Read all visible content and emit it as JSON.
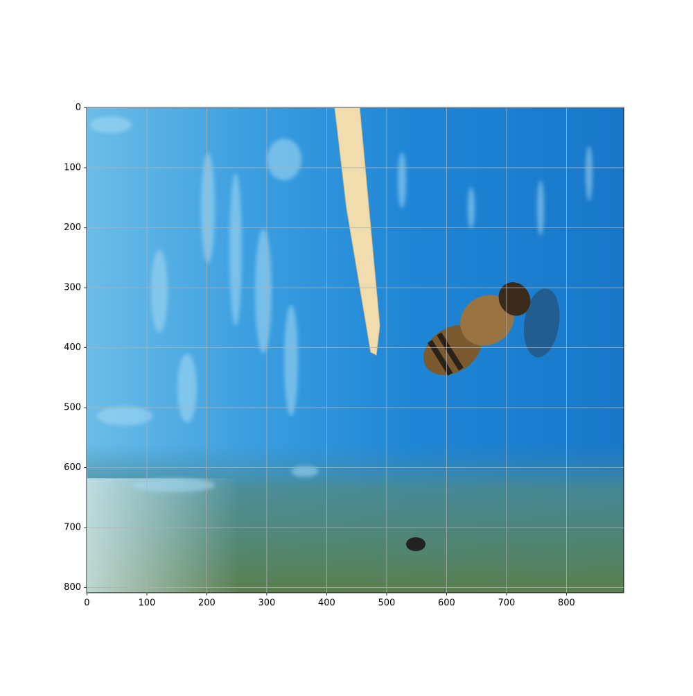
{
  "chart_data": {
    "type": "image",
    "xlim": [
      -0.5,
      895.5
    ],
    "ylim": [
      808.5,
      -0.5
    ],
    "xticks": [
      0,
      100,
      200,
      300,
      400,
      500,
      600,
      700,
      800
    ],
    "yticks": [
      0,
      100,
      200,
      300,
      400,
      500,
      600,
      700,
      800
    ],
    "grid": true
  }
}
